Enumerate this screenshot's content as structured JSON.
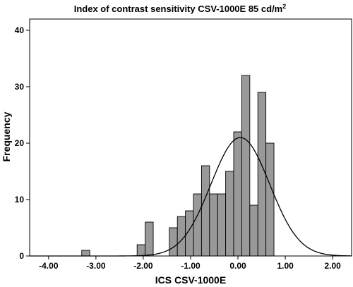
{
  "chart_data": {
    "type": "bar",
    "title": "Index of contrast sensitivity CSV-1000E 85 cd/m",
    "title_superscript": "2",
    "xlabel": "ICS CSV-1000E",
    "ylabel": "Frequency",
    "xlim": [
      -4.4,
      2.4
    ],
    "ylim": [
      0,
      42
    ],
    "xticks": [
      -4.0,
      -3.0,
      -2.0,
      -1.0,
      0.0,
      1.0,
      2.0
    ],
    "xtick_labels": [
      "-4.00",
      "-3.00",
      "-2.00",
      "-1.00",
      "0.00",
      "1.00",
      "2.00"
    ],
    "yticks": [
      0,
      10,
      20,
      30,
      40
    ],
    "ytick_labels": [
      "0",
      "10",
      "20",
      "30",
      "40"
    ],
    "bin_width": 0.17,
    "bins": [
      {
        "start": -3.3,
        "end": -3.13,
        "count": 1
      },
      {
        "start": -2.13,
        "end": -1.96,
        "count": 2
      },
      {
        "start": -1.96,
        "end": -1.79,
        "count": 6
      },
      {
        "start": -1.45,
        "end": -1.28,
        "count": 5
      },
      {
        "start": -1.28,
        "end": -1.11,
        "count": 7
      },
      {
        "start": -1.11,
        "end": -0.94,
        "count": 8
      },
      {
        "start": -0.94,
        "end": -0.77,
        "count": 11
      },
      {
        "start": -0.77,
        "end": -0.6,
        "count": 16
      },
      {
        "start": -0.6,
        "end": -0.43,
        "count": 11
      },
      {
        "start": -0.43,
        "end": -0.26,
        "count": 11
      },
      {
        "start": -0.26,
        "end": -0.09,
        "count": 15
      },
      {
        "start": -0.09,
        "end": 0.08,
        "count": 22
      },
      {
        "start": 0.08,
        "end": 0.25,
        "count": 32
      },
      {
        "start": 0.25,
        "end": 0.42,
        "count": 9
      },
      {
        "start": 0.42,
        "end": 0.59,
        "count": 29
      },
      {
        "start": 0.59,
        "end": 0.76,
        "count": 20
      }
    ],
    "normal_curve": {
      "mean": 0.05,
      "sd": 0.62,
      "peak": 21
    },
    "bar_color": "#999999",
    "grid": false,
    "legend": "none"
  }
}
